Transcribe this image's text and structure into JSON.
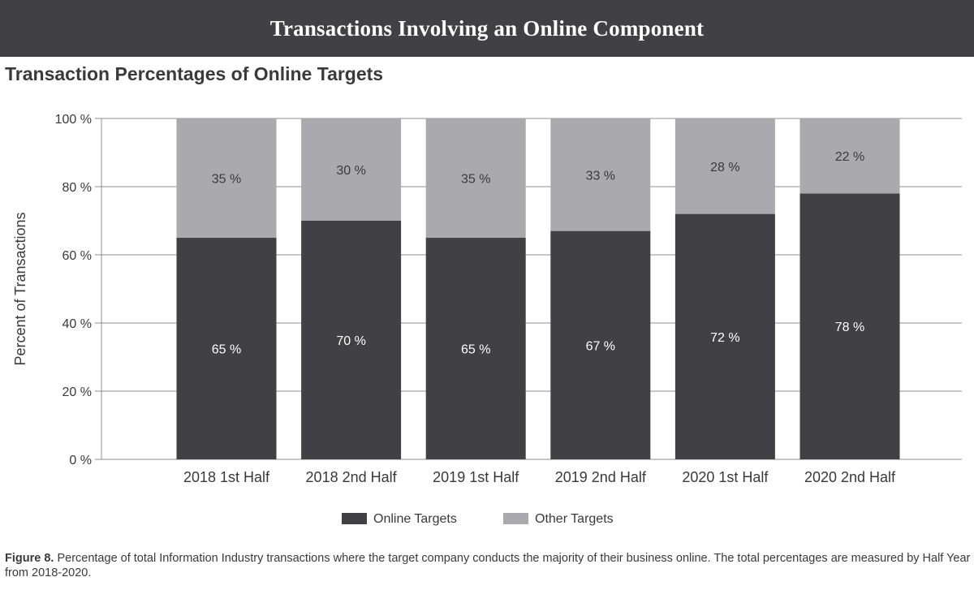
{
  "header": {
    "title": "Transactions Involving an Online Component"
  },
  "chart_data": {
    "type": "bar",
    "stacked": true,
    "title": "Transaction Percentages of Online Targets",
    "xlabel": "",
    "ylabel": "Percent of Transactions",
    "ylim": [
      0,
      100
    ],
    "yticks": [
      0,
      20,
      40,
      60,
      80,
      100
    ],
    "ytick_labels": [
      "0 %",
      "20 %",
      "40 %",
      "60 %",
      "80 %",
      "100 %"
    ],
    "grid": true,
    "legend_position": "bottom",
    "categories": [
      "2018 1st Half",
      "2018 2nd Half",
      "2019 1st Half",
      "2019 2nd Half",
      "2020 1st Half",
      "2020 2nd Half"
    ],
    "series": [
      {
        "name": "Online Targets",
        "color": "#414044",
        "label_color": "#ffffff",
        "values": [
          65,
          70,
          65,
          67,
          72,
          78
        ],
        "value_labels": [
          "65 %",
          "70 %",
          "65 %",
          "67 %",
          "72 %",
          "78 %"
        ]
      },
      {
        "name": "Other Targets",
        "color": "#aaa9ad",
        "label_color": "#3a393c",
        "values": [
          35,
          30,
          35,
          33,
          28,
          22
        ],
        "value_labels": [
          "35 %",
          "30 %",
          "35 %",
          "33 %",
          "28 %",
          "22 %"
        ]
      }
    ]
  },
  "caption": {
    "label": "Figure 8.",
    "text": " Percentage of total Information Industry transactions where the target company conducts the majority of their business online. The total percentages are measured by Half Year from 2018-2020."
  }
}
